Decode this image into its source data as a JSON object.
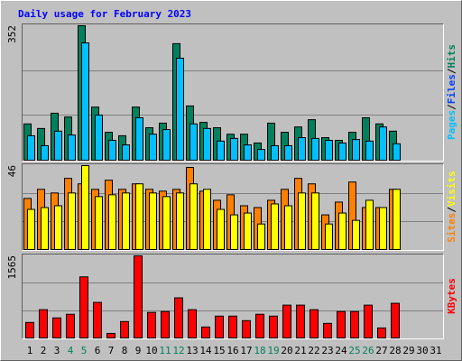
{
  "chart_data": {
    "type": "bar",
    "title": "Daily usage for February 2023",
    "title_color": "#0000ff",
    "categories": [
      "1",
      "2",
      "3",
      "4",
      "5",
      "6",
      "7",
      "8",
      "9",
      "10",
      "11",
      "12",
      "13",
      "14",
      "15",
      "16",
      "17",
      "18",
      "19",
      "20",
      "21",
      "22",
      "23",
      "24",
      "25",
      "26",
      "27",
      "28",
      "29",
      "30",
      "31"
    ],
    "category_colors": [
      "#000000",
      "#000000",
      "#000000",
      "#00805c",
      "#00805c",
      "#000000",
      "#000000",
      "#000000",
      "#000000",
      "#000000",
      "#00805c",
      "#00805c",
      "#000000",
      "#000000",
      "#000000",
      "#000000",
      "#000000",
      "#00805c",
      "#00805c",
      "#000000",
      "#000000",
      "#000000",
      "#000000",
      "#000000",
      "#00805c",
      "#00805c",
      "#000000",
      "#000000",
      "#000000",
      "#000000",
      "#000000"
    ],
    "grid": true,
    "panels": [
      {
        "ylim": [
          0,
          352
        ],
        "yticks": [
          352
        ],
        "legend": [
          {
            "text": "Pages",
            "color": "#00c0ff"
          },
          {
            "text": "/",
            "color": "#000000"
          },
          {
            "text": "Files",
            "color": "#0040ff"
          },
          {
            "text": "/",
            "color": "#000000"
          },
          {
            "text": "Hits",
            "color": "#00805c"
          }
        ],
        "series": [
          {
            "color": "#00805c",
            "values": [
              95,
              83,
              123,
              113,
              352,
              139,
              73,
              64,
              139,
              85,
              97,
              305,
              142,
              99,
              85,
              68,
              68,
              45,
              97,
              73,
              87,
              106,
              59,
              52,
              73,
              111,
              95,
              76,
              null,
              null,
              null
            ]
          },
          {
            "color": "#00c0ff",
            "values": [
              64,
              38,
              76,
              66,
              307,
              118,
              52,
              40,
              111,
              68,
              80,
              267,
              95,
              83,
              50,
              57,
              40,
              28,
              38,
              38,
              59,
              57,
              52,
              45,
              54,
              50,
              87,
              43,
              null,
              null,
              null
            ]
          }
        ]
      },
      {
        "ylim": [
          0,
          46
        ],
        "yticks": [
          46
        ],
        "legend": [
          {
            "text": "Sites",
            "color": "#ff8000"
          },
          {
            "text": "/",
            "color": "#000000"
          },
          {
            "text": "Visits",
            "color": "#ffff00"
          }
        ],
        "series": [
          {
            "color": "#ff8000",
            "values": [
              28,
              33,
              31,
              39,
              36,
              33,
              38,
              33,
              36,
              33,
              32,
              33,
              45,
              32,
              27,
              30,
              24,
              23,
              27,
              33,
              39,
              36,
              19,
              26,
              37,
              23,
              23,
              33,
              null,
              null,
              null
            ]
          },
          {
            "color": "#ffff00",
            "values": [
              22,
              23,
              24,
              31,
              46,
              29,
              30,
              31,
              36,
              31,
              29,
              31,
              36,
              33,
              22,
              19,
              20,
              14,
              25,
              24,
              31,
              31,
              14,
              20,
              16,
              27,
              23,
              33,
              null,
              null,
              null
            ]
          }
        ]
      },
      {
        "ylim": [
          0,
          1565
        ],
        "yticks": [
          1565
        ],
        "legend": [
          {
            "text": "KBytes",
            "color": "#ff0000"
          }
        ],
        "series": [
          {
            "color": "#ff0000",
            "values": [
              296,
              539,
              383,
              452,
              1165,
              678,
              87,
              313,
              1565,
              487,
              504,
              765,
              539,
              209,
              417,
              417,
              330,
              452,
              417,
              626,
              626,
              539,
              278,
              504,
              504,
              626,
              191,
              661,
              null,
              null,
              null
            ]
          }
        ]
      }
    ]
  }
}
